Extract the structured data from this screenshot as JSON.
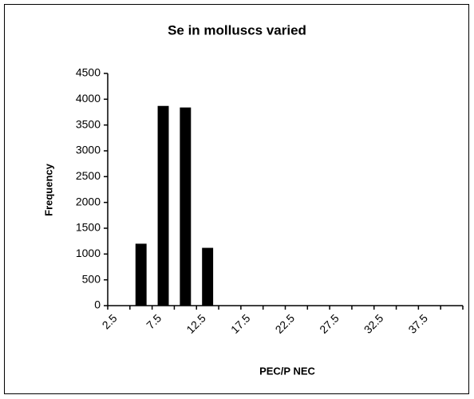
{
  "chart_data": {
    "type": "bar",
    "title": "Se in molluscs varied",
    "categories": [
      "2.5",
      null,
      "7.5",
      null,
      "12.5",
      null,
      "17.5",
      null,
      "22.5",
      null,
      "27.5",
      null,
      "32.5",
      null,
      "37.5",
      null
    ],
    "values": [
      0,
      1200,
      3870,
      3840,
      1120,
      0,
      0,
      0,
      0,
      0,
      0,
      0,
      0,
      0,
      0,
      0
    ],
    "color": "#000000",
    "x_label": "PEC/P NEC",
    "y_label": "Frequency",
    "ylim": [
      0,
      4500
    ],
    "yticks": [
      0,
      500,
      1000,
      1500,
      2000,
      2500,
      3000,
      3500,
      4000,
      4500
    ],
    "grid": false
  }
}
